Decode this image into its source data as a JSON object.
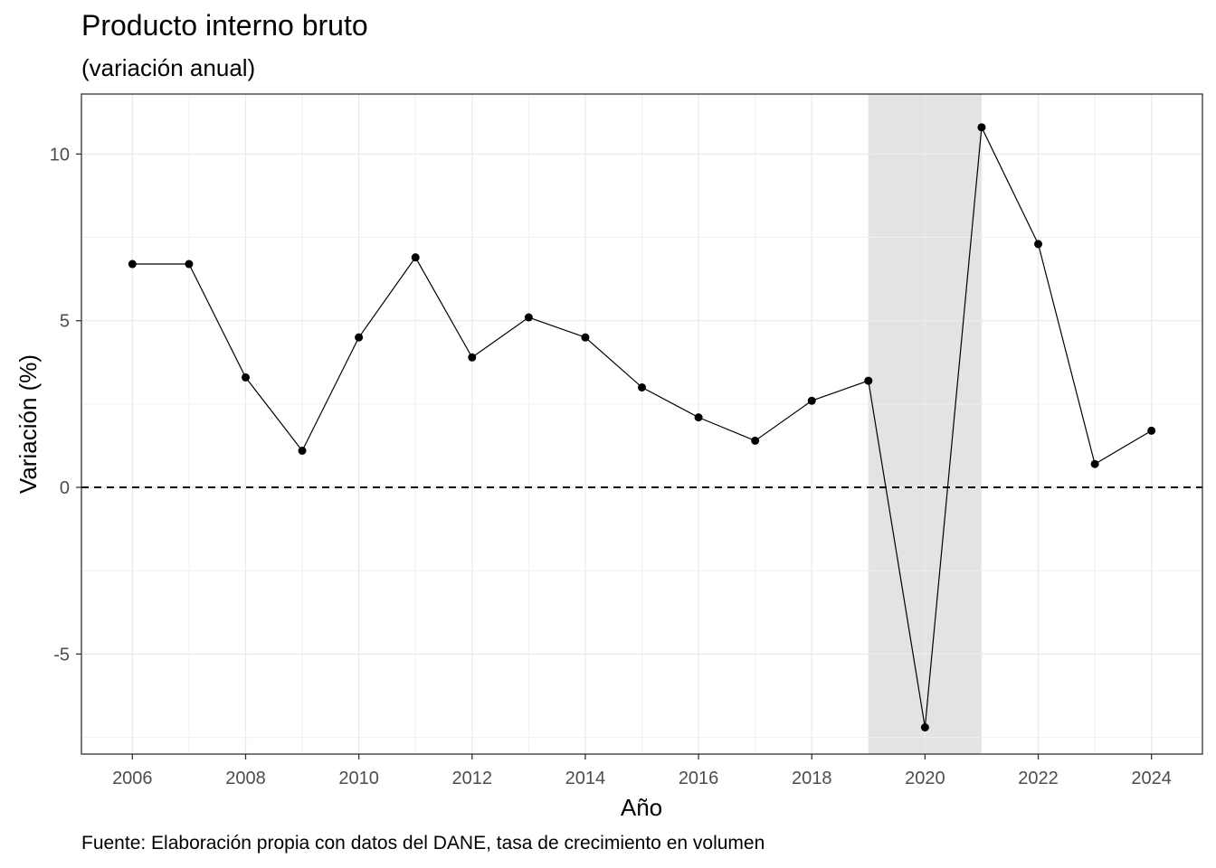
{
  "chart_data": {
    "type": "line",
    "title": "Producto interno bruto",
    "subtitle": "(variación anual)",
    "xlabel": "Año",
    "ylabel": "Variación (%)",
    "caption": "Fuente: Elaboración propia con datos del DANE, tasa de crecimiento en volumen",
    "x": [
      2006,
      2007,
      2008,
      2009,
      2010,
      2011,
      2012,
      2013,
      2014,
      2015,
      2016,
      2017,
      2018,
      2019,
      2020,
      2021,
      2022,
      2023,
      2024
    ],
    "series": [
      {
        "values": [
          6.7,
          6.7,
          3.3,
          1.1,
          4.5,
          6.9,
          3.9,
          5.1,
          4.5,
          3.0,
          2.1,
          1.4,
          2.6,
          3.2,
          -7.2,
          10.8,
          7.3,
          0.7,
          1.7
        ]
      }
    ],
    "xlim": [
      2005.1,
      2024.9
    ],
    "ylim": [
      -8.0,
      11.8
    ],
    "x_ticks": [
      "2006",
      "2008",
      "2010",
      "2012",
      "2014",
      "2016",
      "2018",
      "2020",
      "2022",
      "2024"
    ],
    "y_ticks": [
      "-5",
      "0",
      "5",
      "10"
    ],
    "y_tick_values": [
      -5,
      0,
      5,
      10
    ],
    "x_tick_values": [
      2006,
      2008,
      2010,
      2012,
      2014,
      2016,
      2018,
      2020,
      2022,
      2024
    ],
    "reference_line": {
      "y": 0,
      "style": "dashed"
    },
    "shaded_region": {
      "x_start": 2019,
      "x_end": 2021,
      "color": "#e3e3e3"
    },
    "grid": true,
    "line_color": "#000000",
    "point_color": "#000000"
  }
}
